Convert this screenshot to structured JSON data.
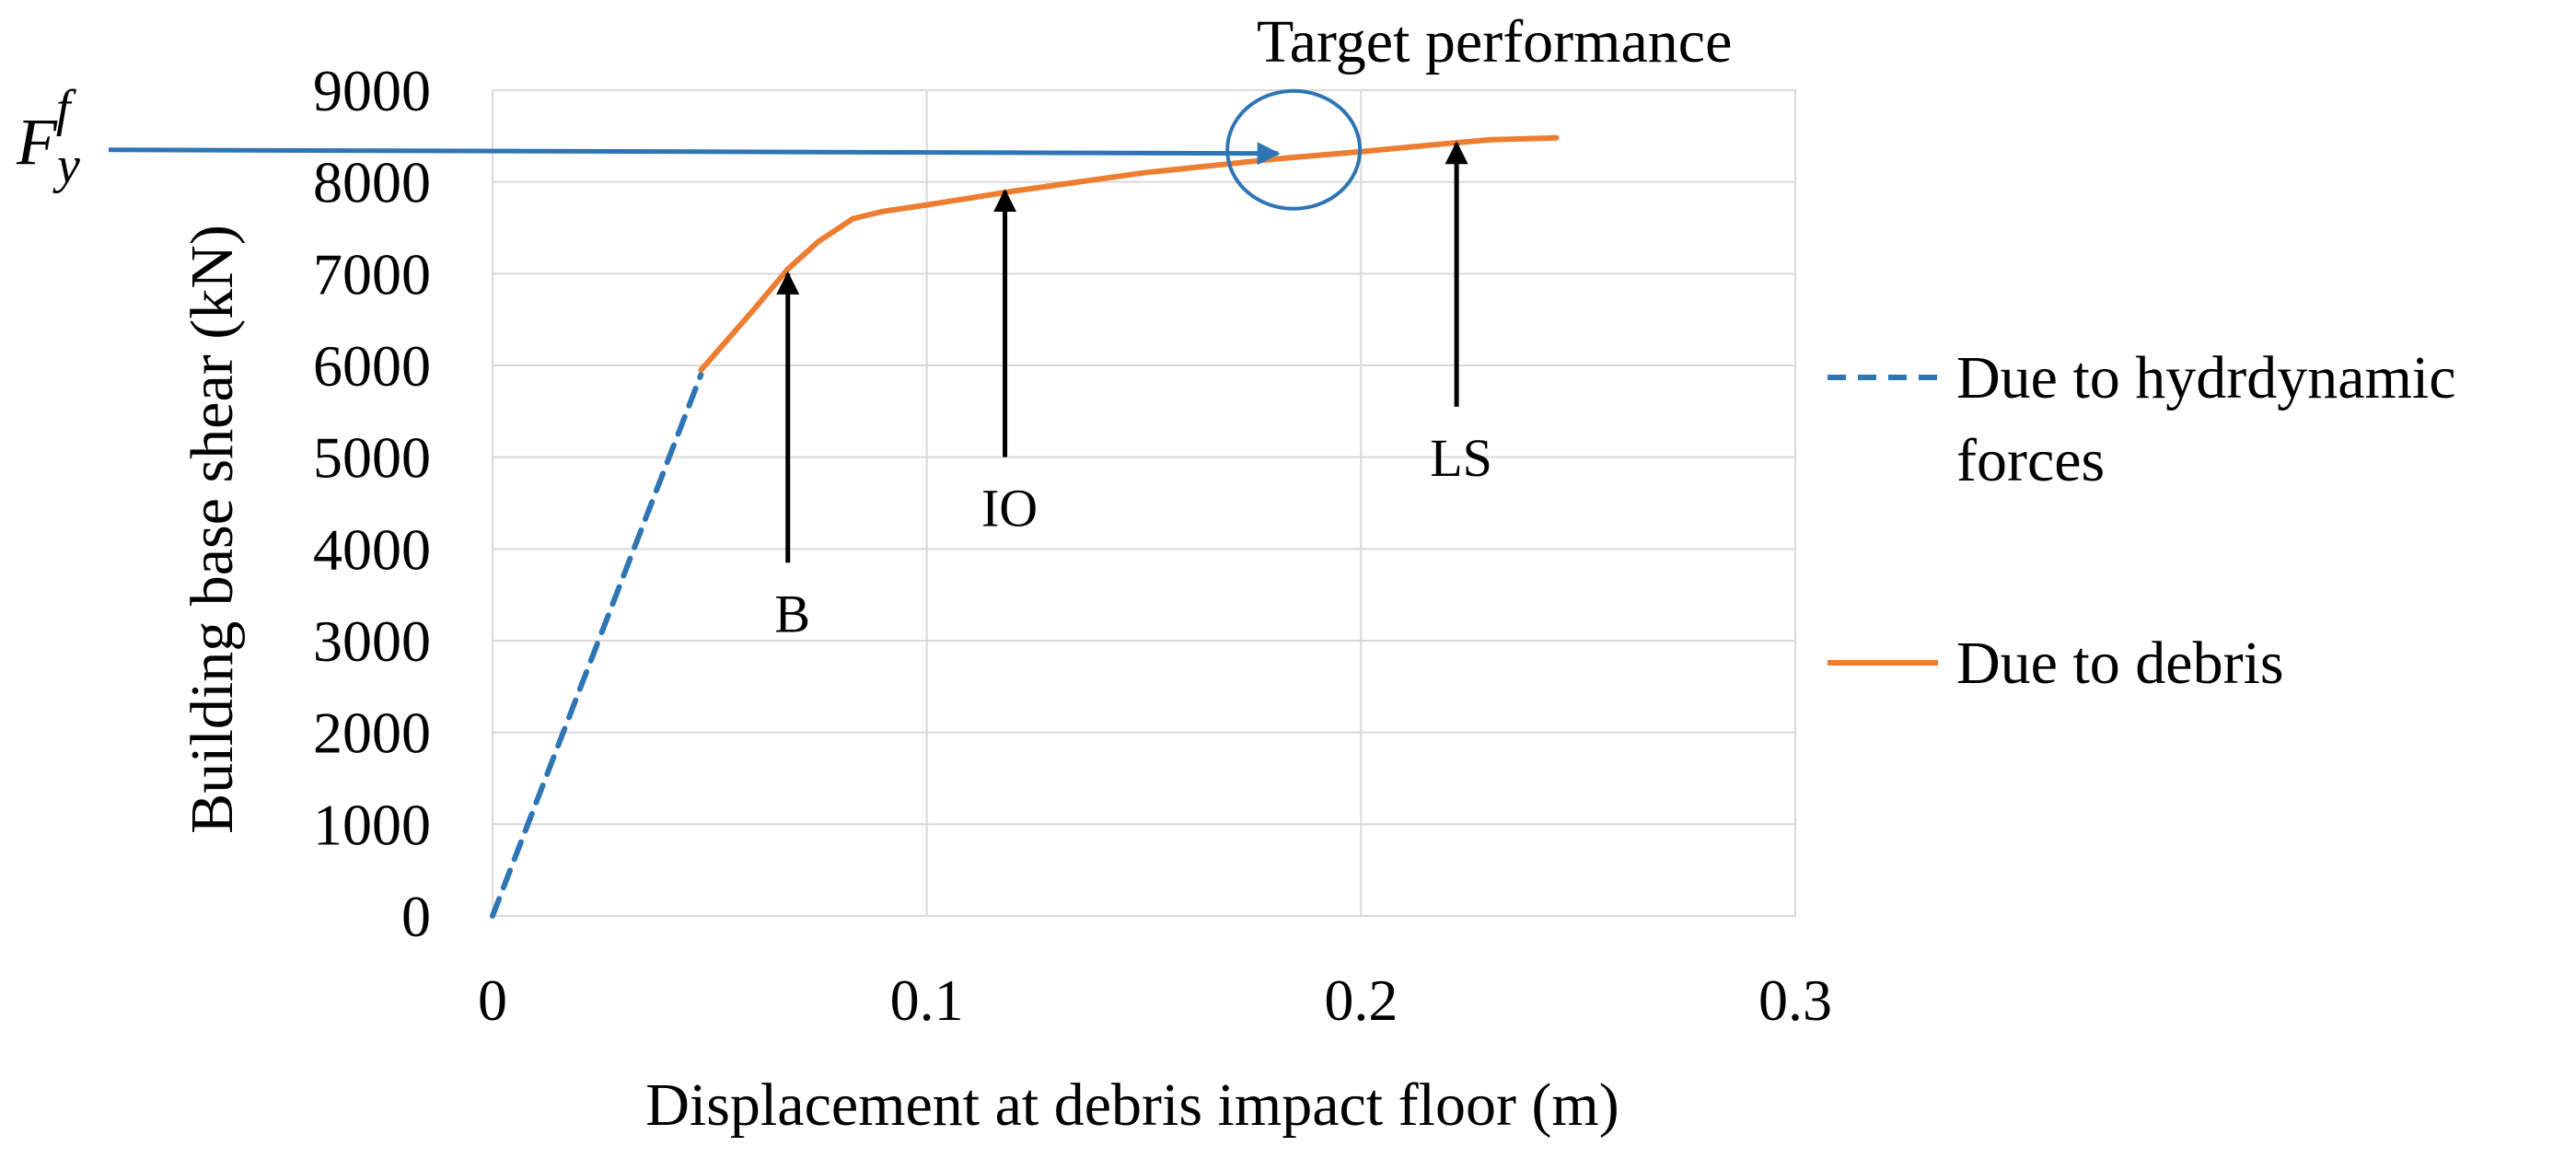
{
  "chart_data": {
    "type": "line",
    "xlabel": "Displacement  at debris impact floor (m)",
    "ylabel": "Building base shear (kN)",
    "xlim": [
      0,
      0.3
    ],
    "ylim": [
      0,
      9000
    ],
    "x_ticks": [
      "0",
      "0.1",
      "0.2",
      "0.3"
    ],
    "y_ticks": [
      "0",
      "1000",
      "2000",
      "3000",
      "4000",
      "5000",
      "6000",
      "7000",
      "8000",
      "9000"
    ],
    "grid": true,
    "legend_position": "right",
    "series": [
      {
        "name": "Due to hydrdynamic forces",
        "legend_line1": "Due to hydrdynamic",
        "legend_line2": "forces",
        "color": "#2E75B6",
        "dash": true,
        "x": [
          0,
          0.048
        ],
        "y": [
          0,
          5900
        ]
      },
      {
        "name": "Due to debris",
        "color": "#ED7D31",
        "dash": false,
        "x": [
          0.048,
          0.06,
          0.068,
          0.075,
          0.083,
          0.09,
          0.1,
          0.12,
          0.15,
          0.18,
          0.2,
          0.22,
          0.23,
          0.245
        ],
        "y": [
          5950,
          6600,
          7050,
          7350,
          7600,
          7680,
          7750,
          7900,
          8100,
          8250,
          8330,
          8420,
          8460,
          8480
        ]
      }
    ],
    "fy_label": "F",
    "fy_sub": "y",
    "fy_sup": "f",
    "fy_line": {
      "color": "#2E75B6",
      "y": 8330,
      "x_end": 0.183
    },
    "target_label": "Target performance",
    "target_circle": {
      "x": 0.183,
      "y": 8330,
      "color": "#2E75B6"
    },
    "annotations": [
      {
        "label": "B",
        "x": 0.068,
        "y_tip": 7000,
        "y_tail": 3850
      },
      {
        "label": "IO",
        "x": 0.118,
        "y_tip": 7900,
        "y_tail": 5000
      },
      {
        "label": "LS",
        "x": 0.222,
        "y_tip": 8420,
        "y_tail": 5550
      }
    ]
  }
}
